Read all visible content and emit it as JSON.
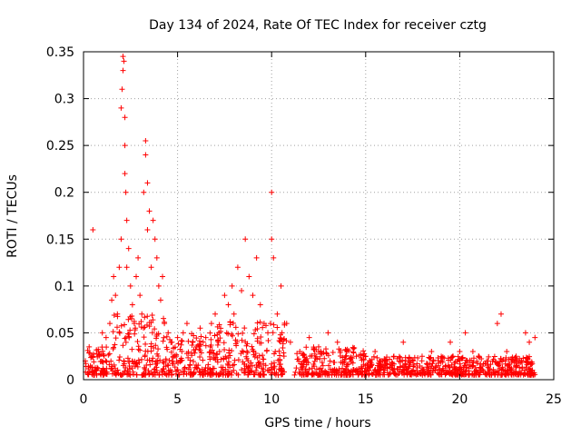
{
  "chart_data": {
    "type": "scatter",
    "title": "Day 134 of 2024, Rate Of TEC Index for receiver cztg",
    "xlabel": "GPS time / hours",
    "ylabel": "ROTI / TECUs",
    "xlim": [
      0,
      25
    ],
    "ylim": [
      0,
      0.35
    ],
    "xticks": [
      0,
      5,
      10,
      15,
      20,
      25
    ],
    "xtick_labels": [
      "0",
      "5",
      "10",
      "15",
      "20",
      "25"
    ],
    "yticks": [
      0,
      0.05,
      0.1,
      0.15,
      0.2,
      0.25,
      0.3,
      0.35
    ],
    "ytick_labels": [
      "0",
      "0.05",
      "0.1",
      "0.15",
      "0.2",
      "0.25",
      "0.3",
      "0.35"
    ],
    "grid": true,
    "marker": "+",
    "series": [
      {
        "name": "ROTI",
        "color": "#ff0000",
        "points": [
          [
            0.1,
            0.02
          ],
          [
            0.3,
            0.035
          ],
          [
            0.5,
            0.16
          ],
          [
            0.5,
            0.025
          ],
          [
            0.8,
            0.03
          ],
          [
            1.0,
            0.05
          ],
          [
            1.2,
            0.045
          ],
          [
            1.4,
            0.06
          ],
          [
            1.5,
            0.085
          ],
          [
            1.6,
            0.11
          ],
          [
            1.7,
            0.09
          ],
          [
            1.8,
            0.07
          ],
          [
            1.9,
            0.12
          ],
          [
            2.0,
            0.15
          ],
          [
            2.0,
            0.29
          ],
          [
            2.05,
            0.31
          ],
          [
            2.1,
            0.345
          ],
          [
            2.1,
            0.33
          ],
          [
            2.15,
            0.34
          ],
          [
            2.2,
            0.25
          ],
          [
            2.2,
            0.22
          ],
          [
            2.2,
            0.28
          ],
          [
            2.25,
            0.2
          ],
          [
            2.3,
            0.17
          ],
          [
            2.3,
            0.12
          ],
          [
            2.4,
            0.14
          ],
          [
            2.5,
            0.1
          ],
          [
            2.6,
            0.08
          ],
          [
            2.7,
            0.06
          ],
          [
            2.8,
            0.11
          ],
          [
            2.9,
            0.13
          ],
          [
            3.0,
            0.09
          ],
          [
            3.1,
            0.07
          ],
          [
            3.2,
            0.2
          ],
          [
            3.3,
            0.255
          ],
          [
            3.3,
            0.24
          ],
          [
            3.4,
            0.21
          ],
          [
            3.4,
            0.16
          ],
          [
            3.5,
            0.18
          ],
          [
            3.6,
            0.12
          ],
          [
            3.7,
            0.17
          ],
          [
            3.8,
            0.15
          ],
          [
            3.9,
            0.13
          ],
          [
            4.0,
            0.1
          ],
          [
            4.1,
            0.085
          ],
          [
            4.2,
            0.11
          ],
          [
            4.3,
            0.06
          ],
          [
            4.5,
            0.05
          ],
          [
            4.7,
            0.04
          ],
          [
            5.0,
            0.045
          ],
          [
            5.3,
            0.05
          ],
          [
            5.5,
            0.06
          ],
          [
            5.8,
            0.04
          ],
          [
            6.0,
            0.035
          ],
          [
            6.2,
            0.055
          ],
          [
            6.5,
            0.045
          ],
          [
            6.8,
            0.06
          ],
          [
            7.0,
            0.07
          ],
          [
            7.2,
            0.05
          ],
          [
            7.5,
            0.09
          ],
          [
            7.7,
            0.08
          ],
          [
            7.9,
            0.1
          ],
          [
            8.0,
            0.07
          ],
          [
            8.2,
            0.12
          ],
          [
            8.4,
            0.095
          ],
          [
            8.6,
            0.15
          ],
          [
            8.8,
            0.11
          ],
          [
            9.0,
            0.09
          ],
          [
            9.2,
            0.13
          ],
          [
            9.4,
            0.08
          ],
          [
            9.6,
            0.06
          ],
          [
            9.8,
            0.05
          ],
          [
            10.0,
            0.2
          ],
          [
            10.0,
            0.15
          ],
          [
            10.1,
            0.13
          ],
          [
            10.3,
            0.07
          ],
          [
            10.5,
            0.1
          ],
          [
            10.8,
            0.06
          ],
          [
            11.0,
            0.04
          ],
          [
            11.5,
            0.03
          ],
          [
            12.0,
            0.045
          ],
          [
            12.5,
            0.035
          ],
          [
            13.0,
            0.05
          ],
          [
            13.5,
            0.04
          ],
          [
            14.0,
            0.03
          ],
          [
            14.5,
            0.025
          ],
          [
            15.0,
            0.025
          ],
          [
            15.5,
            0.03
          ],
          [
            16.0,
            0.02
          ],
          [
            16.5,
            0.025
          ],
          [
            17.0,
            0.04
          ],
          [
            17.5,
            0.02
          ],
          [
            18.0,
            0.025
          ],
          [
            18.5,
            0.03
          ],
          [
            19.0,
            0.02
          ],
          [
            19.5,
            0.04
          ],
          [
            20.0,
            0.03
          ],
          [
            20.3,
            0.05
          ],
          [
            20.7,
            0.03
          ],
          [
            21.0,
            0.025
          ],
          [
            21.5,
            0.02
          ],
          [
            22.0,
            0.06
          ],
          [
            22.2,
            0.07
          ],
          [
            22.5,
            0.03
          ],
          [
            23.0,
            0.025
          ],
          [
            23.5,
            0.05
          ],
          [
            23.7,
            0.04
          ],
          [
            24.0,
            0.045
          ]
        ]
      }
    ],
    "dense_band": {
      "series": "ROTI",
      "segments": [
        {
          "x_range": [
            0.1,
            1.5
          ],
          "y_range": [
            0.005,
            0.035
          ]
        },
        {
          "x_range": [
            1.5,
            4.5
          ],
          "y_range": [
            0.005,
            0.07
          ]
        },
        {
          "x_range": [
            4.5,
            7.0
          ],
          "y_range": [
            0.005,
            0.05
          ]
        },
        {
          "x_range": [
            7.0,
            10.8
          ],
          "y_range": [
            0.005,
            0.065
          ]
        },
        {
          "x_range": [
            11.2,
            15.0
          ],
          "y_range": [
            0.005,
            0.035
          ]
        },
        {
          "x_range": [
            15.0,
            24.0
          ],
          "y_range": [
            0.005,
            0.025
          ]
        }
      ]
    }
  }
}
